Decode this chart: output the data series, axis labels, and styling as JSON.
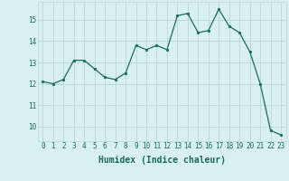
{
  "x": [
    0,
    1,
    2,
    3,
    4,
    5,
    6,
    7,
    8,
    9,
    10,
    11,
    12,
    13,
    14,
    15,
    16,
    17,
    18,
    19,
    20,
    21,
    22,
    23
  ],
  "y": [
    12.1,
    12.0,
    12.2,
    13.1,
    13.1,
    12.7,
    12.3,
    12.2,
    12.5,
    13.8,
    13.6,
    13.8,
    13.6,
    15.2,
    15.3,
    14.4,
    14.5,
    15.5,
    14.7,
    14.4,
    13.5,
    12.0,
    9.8,
    9.6
  ],
  "line_color": "#1a6b5a",
  "marker": "o",
  "marker_size": 1.8,
  "bg_color": "#d8f0f0",
  "grid_color": "#b8d8d8",
  "xlabel": "Humidex (Indice chaleur)",
  "xlabel_fontsize": 7,
  "xlabel_bold": true,
  "tick_fontsize": 5.5,
  "yticks": [
    10,
    11,
    12,
    13,
    14,
    15
  ],
  "xticks": [
    0,
    1,
    2,
    3,
    4,
    5,
    6,
    7,
    8,
    9,
    10,
    11,
    12,
    13,
    14,
    15,
    16,
    17,
    18,
    19,
    20,
    21,
    22,
    23
  ],
  "ylim": [
    9.3,
    15.85
  ],
  "xlim": [
    -0.5,
    23.5
  ]
}
